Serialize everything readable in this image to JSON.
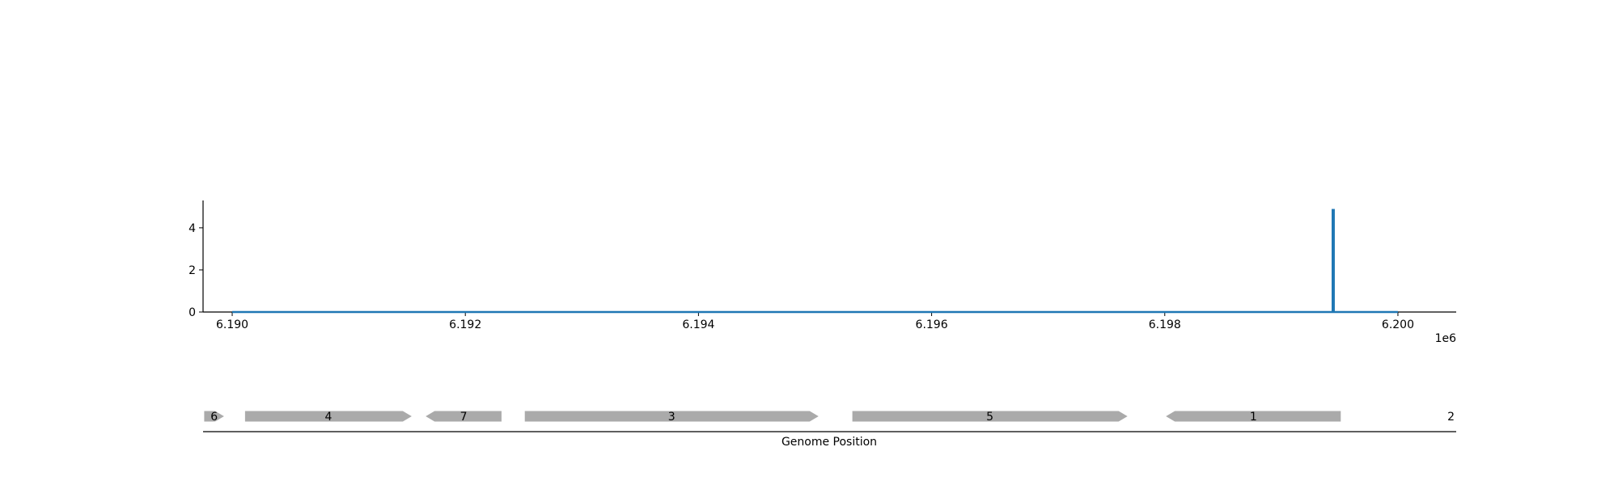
{
  "chart_data": [
    {
      "type": "line",
      "title": "",
      "xlabel": "",
      "ylabel": "",
      "x_offset_label": "1e6",
      "xlim": [
        6.18975,
        6.2005
      ],
      "ylim": [
        0,
        5.3
      ],
      "x_ticks": [
        6.19,
        6.192,
        6.194,
        6.196,
        6.198,
        6.2
      ],
      "x_tick_labels": [
        "6.190",
        "6.192",
        "6.194",
        "6.196",
        "6.198",
        "6.200"
      ],
      "y_ticks": [
        0,
        2,
        4
      ],
      "y_tick_labels": [
        "0",
        "2",
        "4"
      ],
      "grid": false,
      "series": [
        {
          "color": "#1f77b4",
          "points": [
            [
              6.19,
              0
            ],
            [
              6.19944,
              0
            ],
            [
              6.19944,
              4.85
            ],
            [
              6.19945,
              4.85
            ],
            [
              6.19945,
              0
            ],
            [
              6.2,
              0
            ]
          ]
        }
      ]
    },
    {
      "type": "gene_track",
      "xlabel": "Genome Position",
      "xlim": [
        6.18975,
        6.2005
      ],
      "genes": [
        {
          "label": "6",
          "start": 6.18976,
          "end": 6.18993,
          "strand": "+",
          "color": "#aaaaaa"
        },
        {
          "label": "4",
          "start": 6.19011,
          "end": 6.19154,
          "strand": "+",
          "color": "#aaaaaa"
        },
        {
          "label": "7",
          "start": 6.19166,
          "end": 6.19231,
          "strand": "-",
          "color": "#aaaaaa"
        },
        {
          "label": "3",
          "start": 6.19251,
          "end": 6.19503,
          "strand": "+",
          "color": "#aaaaaa"
        },
        {
          "label": "5",
          "start": 6.19532,
          "end": 6.19768,
          "strand": "+",
          "color": "#aaaaaa"
        },
        {
          "label": "1",
          "start": 6.19801,
          "end": 6.19951,
          "strand": "-",
          "color": "#aaaaaa"
        },
        {
          "label": "2",
          "start": 6.2005,
          "end": 6.2005,
          "strand": "+",
          "color": "#aaaaaa"
        }
      ]
    }
  ]
}
